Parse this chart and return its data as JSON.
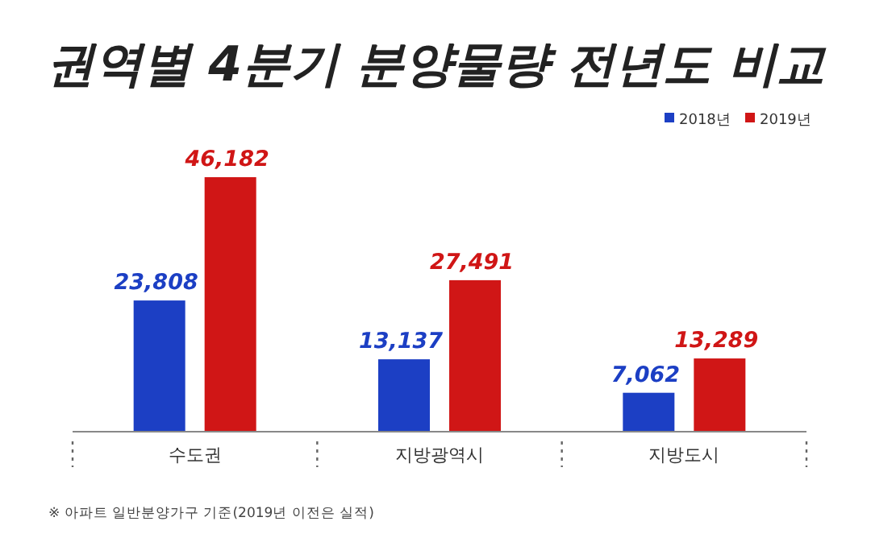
{
  "chart_data": {
    "type": "bar",
    "title": "권역별 4분기 분양물량 전년도 비교",
    "categories": [
      "수도권",
      "지방광역시",
      "지방도시"
    ],
    "series": [
      {
        "name": "2018년",
        "color": "#1c3fc4",
        "values": [
          23808,
          13137,
          7062
        ],
        "value_labels": [
          "23,808",
          "13,137",
          "7,062"
        ]
      },
      {
        "name": "2019년",
        "color": "#d01616",
        "values": [
          46182,
          27491,
          13289
        ],
        "value_labels": [
          "46,182",
          "27,491",
          "13,289"
        ]
      }
    ],
    "legend": "top right",
    "annotations": [
      "※ 아파트 일반분양가구 기준(2019년 이전은 실적)"
    ]
  }
}
